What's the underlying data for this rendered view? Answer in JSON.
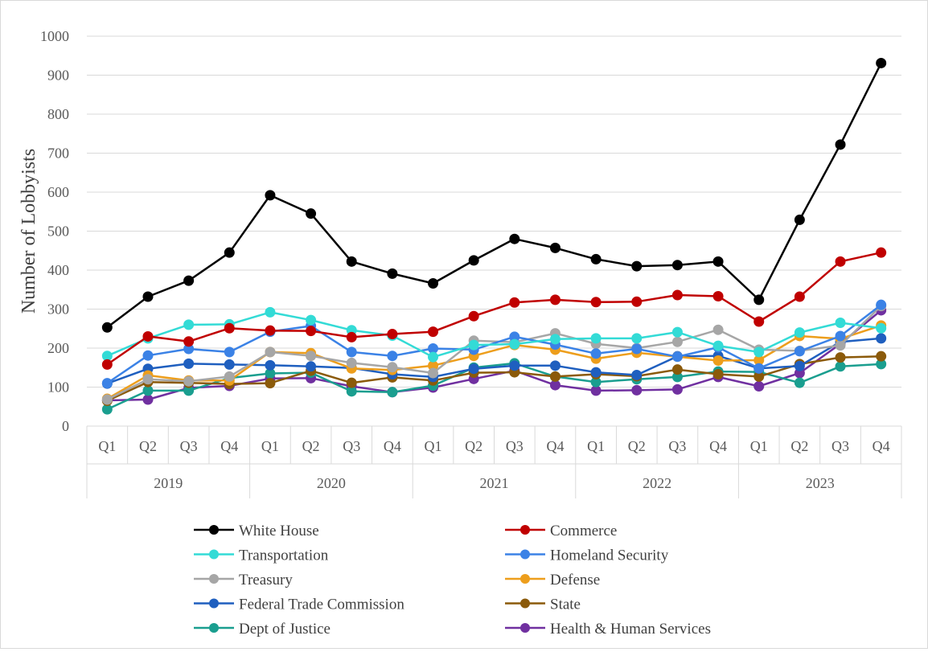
{
  "chart_data": {
    "type": "line",
    "title": "",
    "ylabel": "Number of Lobbyists",
    "xlabel": "",
    "ylim": [
      0,
      1000
    ],
    "yticks": [
      0,
      100,
      200,
      300,
      400,
      500,
      600,
      700,
      800,
      900,
      1000
    ],
    "quarters": [
      "Q1",
      "Q2",
      "Q3",
      "Q4"
    ],
    "years": [
      "2019",
      "2020",
      "2021",
      "2022",
      "2023"
    ],
    "grid": true,
    "legend_position": "bottom",
    "series": [
      {
        "name": "White House",
        "color": "#000000",
        "values": [
          253,
          332,
          373,
          445,
          592,
          545,
          422,
          391,
          366,
          425,
          480,
          457,
          428,
          410,
          413,
          422,
          324,
          529,
          722,
          931
        ]
      },
      {
        "name": "Commerce",
        "color": "#c00000",
        "values": [
          158,
          230,
          217,
          251,
          245,
          244,
          228,
          236,
          242,
          282,
          317,
          324,
          318,
          319,
          336,
          333,
          268,
          332,
          422,
          445
        ]
      },
      {
        "name": "Transportation",
        "color": "#33dbd6",
        "values": [
          180,
          225,
          260,
          261,
          292,
          272,
          246,
          232,
          177,
          208,
          210,
          223,
          225,
          225,
          241,
          206,
          190,
          240,
          265,
          251
        ]
      },
      {
        "name": "Homeland Security",
        "color": "#3b82e6",
        "values": [
          110,
          181,
          198,
          190,
          242,
          257,
          190,
          180,
          199,
          196,
          229,
          209,
          186,
          198,
          178,
          202,
          148,
          192,
          231,
          311
        ]
      },
      {
        "name": "Treasury",
        "color": "#a6a6a6",
        "values": [
          68,
          120,
          115,
          127,
          190,
          180,
          162,
          151,
          136,
          219,
          215,
          238,
          211,
          200,
          216,
          247,
          196,
          193,
          207,
          308
        ]
      },
      {
        "name": "Defense",
        "color": "#ed9e1c",
        "values": [
          70,
          130,
          117,
          117,
          190,
          187,
          148,
          144,
          155,
          180,
          208,
          196,
          173,
          188,
          178,
          168,
          169,
          231,
          224,
          258
        ]
      },
      {
        "name": "Federal Trade Commission",
        "color": "#1f5fbf",
        "values": [
          109,
          147,
          160,
          158,
          156,
          153,
          149,
          133,
          126,
          147,
          155,
          155,
          138,
          131,
          179,
          180,
          148,
          154,
          216,
          225
        ]
      },
      {
        "name": "State",
        "color": "#8b5a0a",
        "values": [
          65,
          113,
          111,
          108,
          110,
          142,
          111,
          125,
          117,
          137,
          138,
          127,
          133,
          128,
          145,
          133,
          127,
          159,
          176,
          179
        ]
      },
      {
        "name": "Dept of Justice",
        "color": "#1a9e8f",
        "values": [
          43,
          91,
          91,
          123,
          135,
          137,
          89,
          87,
          104,
          150,
          161,
          127,
          113,
          120,
          126,
          140,
          139,
          111,
          153,
          159
        ]
      },
      {
        "name": "Health & Human Services",
        "color": "#7030a0",
        "values": [
          66,
          68,
          98,
          103,
          122,
          123,
          102,
          87,
          99,
          121,
          142,
          105,
          91,
          92,
          94,
          126,
          102,
          136,
          211,
          297
        ]
      }
    ]
  }
}
